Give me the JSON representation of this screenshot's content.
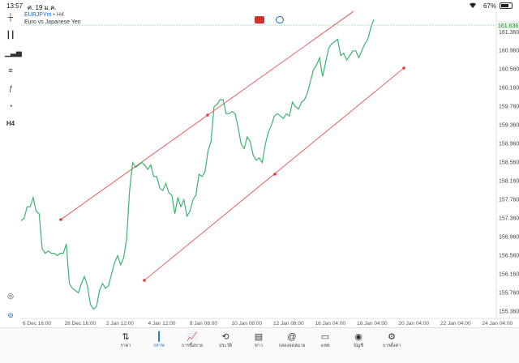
{
  "status": {
    "time": "13:57",
    "date": "ศ. 19 ม.ค.",
    "battery": "67%"
  },
  "chart": {
    "symbol": "EURJPYm",
    "timeframe": "H4",
    "description": "Euro vs Japanese Yen",
    "current_price": "161.636",
    "price_labels": [
      "161.360",
      "160.960",
      "160.560",
      "160.160",
      "159.760",
      "159.360",
      "158.960",
      "158.560",
      "158.160",
      "157.760",
      "157.360",
      "156.960",
      "156.560",
      "156.160",
      "155.760",
      "155.360"
    ],
    "time_labels": [
      "6 Dec 16:00",
      "28 Dec 16:00",
      "2 Jan 12:00",
      "4 Jan 12:00",
      "8 Jan 08:00",
      "10 Jan 08:00",
      "12 Jan 08:00",
      "16 Jan 04:00",
      "18 Jan 04:00",
      "20 Jan 04:00",
      "22 Jan 04:00",
      "24 Jan 04:00"
    ],
    "line_color": "#3cb371",
    "channel_color": "#e53935"
  },
  "chart_data": {
    "type": "line",
    "title": "EURJPYm, H4",
    "ylim": [
      155.2,
      161.8
    ],
    "x_start": "6 Dec 16:00",
    "series": [
      {
        "name": "EURJPYm",
        "values": [
          157.3,
          157.35,
          157.6,
          157.6,
          157.8,
          157.5,
          157.45,
          156.7,
          156.6,
          156.65,
          156.6,
          156.6,
          156.55,
          156.6,
          156.6,
          156.8,
          155.95,
          155.85,
          155.8,
          155.75,
          155.95,
          156.1,
          155.9,
          155.5,
          155.4,
          155.45,
          155.8,
          155.95,
          155.85,
          155.9,
          156.15,
          156.4,
          156.55,
          156.35,
          156.5,
          156.9,
          157.95,
          158.55,
          158.45,
          158.5,
          158.55,
          158.5,
          158.4,
          158.5,
          158.25,
          158.25,
          158.0,
          157.95,
          158.1,
          157.9,
          157.85,
          157.45,
          157.8,
          157.6,
          157.75,
          157.4,
          157.5,
          157.75,
          157.85,
          158.3,
          158.25,
          158.35,
          158.8,
          159.0,
          159.75,
          159.8,
          159.9,
          159.9,
          159.6,
          159.6,
          159.65,
          159.6,
          159.3,
          158.95,
          158.85,
          159.1,
          159.0,
          158.7,
          158.6,
          158.65,
          158.55,
          158.95,
          159.2,
          159.35,
          159.55,
          159.6,
          159.55,
          159.5,
          159.6,
          159.55,
          159.85,
          159.75,
          159.7,
          159.85,
          159.9,
          160.05,
          160.3,
          160.55,
          160.65,
          160.8,
          160.4,
          160.7,
          161.0,
          161.1,
          161.15,
          161.2,
          160.85,
          160.9,
          160.75,
          160.85,
          160.95,
          160.95,
          160.8,
          160.95,
          161.1,
          161.2,
          161.45,
          161.63
        ]
      }
    ],
    "channel_upper": [
      [
        157.35,
        0
      ],
      [
        161.85,
        1
      ]
    ],
    "channel_lower": [
      [
        155.85,
        0
      ],
      [
        160.6,
        1
      ]
    ]
  },
  "toolbar": {
    "left_tools": [
      "crosshair-tool",
      "candles-tool",
      "bars-tool",
      "indicators-tool",
      "function-tool",
      "objects-tool",
      "timeframe-tool"
    ],
    "timeframe_label": "H4"
  },
  "tabs": [
    {
      "label": "ราคา",
      "icon": "⇅"
    },
    {
      "label": "กราฟ",
      "icon": "┃"
    },
    {
      "label": "การซื้อขาย",
      "icon": "📈"
    },
    {
      "label": "ประวัติ",
      "icon": "⟲"
    },
    {
      "label": "ข่าว",
      "icon": "▤"
    },
    {
      "label": "กล่องจดหมาย",
      "icon": "@"
    },
    {
      "label": "แชท",
      "icon": "▭"
    },
    {
      "label": "บัญชี",
      "icon": "◉"
    },
    {
      "label": "การตั้งค่า",
      "icon": "⚙"
    }
  ]
}
